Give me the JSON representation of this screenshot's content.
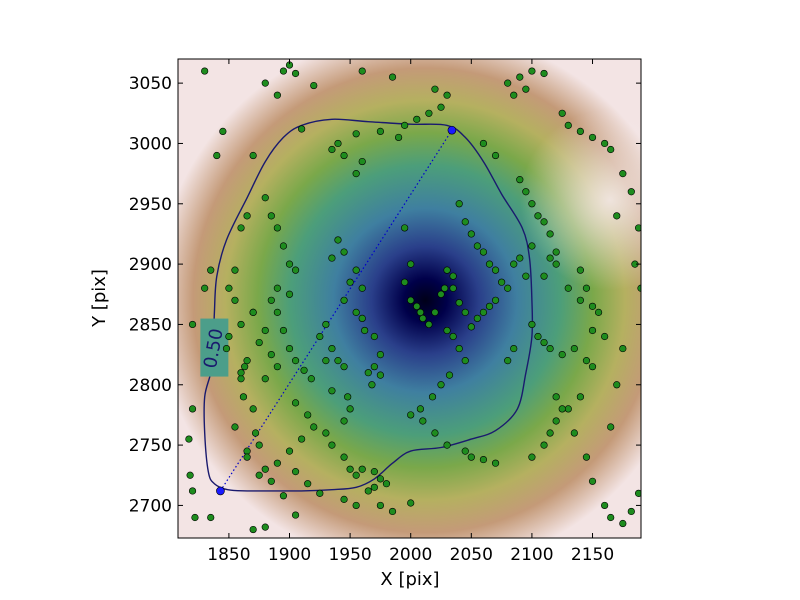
{
  "chart_data": {
    "type": "scatter",
    "title": "",
    "xlabel": "X [pix]",
    "ylabel": "Y [pix]",
    "xlim": [
      1808,
      2190
    ],
    "ylim": [
      2673,
      3070
    ],
    "x_ticks": [
      1850,
      1900,
      1950,
      2000,
      2050,
      2100,
      2150
    ],
    "y_ticks": [
      2700,
      2750,
      2800,
      2850,
      2900,
      2950,
      3000,
      3050
    ],
    "grid": false,
    "legend": "none",
    "density_peak": {
      "x": 2012,
      "y": 2870
    },
    "contour": {
      "label": "0.50",
      "color": "#1a1a6e",
      "path": [
        [
          1849,
          2713
        ],
        [
          1838,
          2718
        ],
        [
          1833,
          2728
        ],
        [
          1830,
          2760
        ],
        [
          1830,
          2790
        ],
        [
          1835,
          2810
        ],
        [
          1837,
          2830
        ],
        [
          1838,
          2860
        ],
        [
          1840,
          2890
        ],
        [
          1848,
          2920
        ],
        [
          1865,
          2955
        ],
        [
          1880,
          2985
        ],
        [
          1895,
          3005
        ],
        [
          1910,
          3015
        ],
        [
          1935,
          3020
        ],
        [
          1965,
          3018
        ],
        [
          2000,
          3016
        ],
        [
          2030,
          3015
        ],
        [
          2045,
          3005
        ],
        [
          2060,
          2985
        ],
        [
          2075,
          2958
        ],
        [
          2092,
          2930
        ],
        [
          2098,
          2905
        ],
        [
          2100,
          2870
        ],
        [
          2100,
          2840
        ],
        [
          2095,
          2810
        ],
        [
          2088,
          2780
        ],
        [
          2070,
          2762
        ],
        [
          2050,
          2755
        ],
        [
          2025,
          2748
        ],
        [
          2000,
          2745
        ],
        [
          1985,
          2735
        ],
        [
          1970,
          2722
        ],
        [
          1955,
          2715
        ],
        [
          1935,
          2713
        ],
        [
          1910,
          2712
        ],
        [
          1885,
          2712
        ],
        [
          1865,
          2712
        ]
      ]
    },
    "major_axis": {
      "color": "#0000cc",
      "endpoints": [
        [
          1843,
          2712
        ],
        [
          2034,
          3011
        ]
      ]
    },
    "points_color": "#1e8c1e",
    "points": [
      [
        1830,
        3060
      ],
      [
        1845,
        3010
      ],
      [
        1840,
        2990
      ],
      [
        1865,
        2940
      ],
      [
        1860,
        2930
      ],
      [
        1855,
        2870
      ],
      [
        1850,
        2840
      ],
      [
        1848,
        2830
      ],
      [
        1835,
        2895
      ],
      [
        1830,
        2880
      ],
      [
        1820,
        2850
      ],
      [
        1820,
        2780
      ],
      [
        1817,
        2755
      ],
      [
        1818,
        2725
      ],
      [
        1820,
        2712
      ],
      [
        1822,
        2690
      ],
      [
        1835,
        2690
      ],
      [
        1850,
        2880
      ],
      [
        1855,
        2895
      ],
      [
        1860,
        2850
      ],
      [
        1863,
        2815
      ],
      [
        1860,
        2805
      ],
      [
        1862,
        2790
      ],
      [
        1870,
        2780
      ],
      [
        1872,
        2760
      ],
      [
        1875,
        2750
      ],
      [
        1865,
        2745
      ],
      [
        1880,
        2730
      ],
      [
        1885,
        2720
      ],
      [
        1895,
        2708
      ],
      [
        1870,
        2680
      ],
      [
        1880,
        2682
      ],
      [
        1905,
        2692
      ],
      [
        1880,
        3050
      ],
      [
        1890,
        3040
      ],
      [
        1895,
        3060
      ],
      [
        1900,
        3065
      ],
      [
        1905,
        3058
      ],
      [
        1920,
        3048
      ],
      [
        1910,
        3012
      ],
      [
        1870,
        2990
      ],
      [
        1880,
        2955
      ],
      [
        1885,
        2940
      ],
      [
        1890,
        2930
      ],
      [
        1895,
        2915
      ],
      [
        1900,
        2900
      ],
      [
        1905,
        2895
      ],
      [
        1900,
        2875
      ],
      [
        1890,
        2860
      ],
      [
        1895,
        2845
      ],
      [
        1900,
        2830
      ],
      [
        1905,
        2820
      ],
      [
        1912,
        2812
      ],
      [
        1918,
        2805
      ],
      [
        1930,
        2850
      ],
      [
        1925,
        2840
      ],
      [
        1935,
        2830
      ],
      [
        1930,
        2820
      ],
      [
        1940,
        2820
      ],
      [
        1945,
        2815
      ],
      [
        1935,
        2795
      ],
      [
        1948,
        2790
      ],
      [
        1950,
        2780
      ],
      [
        1945,
        2770
      ],
      [
        1930,
        2760
      ],
      [
        1935,
        2750
      ],
      [
        1945,
        2740
      ],
      [
        1950,
        2730
      ],
      [
        1955,
        2725
      ],
      [
        1960,
        2730
      ],
      [
        1970,
        2728
      ],
      [
        1975,
        2722
      ],
      [
        1980,
        2718
      ],
      [
        1965,
        2712
      ],
      [
        1970,
        2715
      ],
      [
        1945,
        2705
      ],
      [
        1955,
        2700
      ],
      [
        1975,
        2700
      ],
      [
        1985,
        2695
      ],
      [
        2000,
        2702
      ],
      [
        1940,
        2920
      ],
      [
        1945,
        2910
      ],
      [
        1935,
        2905
      ],
      [
        1955,
        2895
      ],
      [
        1950,
        2885
      ],
      [
        1960,
        2880
      ],
      [
        1945,
        2870
      ],
      [
        1955,
        2860
      ],
      [
        1960,
        2855
      ],
      [
        1962,
        2845
      ],
      [
        1970,
        2840
      ],
      [
        1975,
        2825
      ],
      [
        1970,
        2815
      ],
      [
        1965,
        2810
      ],
      [
        1975,
        2808
      ],
      [
        1968,
        2800
      ],
      [
        1955,
        2975
      ],
      [
        1960,
        2985
      ],
      [
        1945,
        2990
      ],
      [
        1935,
        2995
      ],
      [
        1940,
        3000
      ],
      [
        1955,
        3008
      ],
      [
        1975,
        3010
      ],
      [
        1990,
        3005
      ],
      [
        1995,
        3015
      ],
      [
        2005,
        3020
      ],
      [
        2015,
        3025
      ],
      [
        2025,
        3030
      ],
      [
        2030,
        3040
      ],
      [
        2020,
        3045
      ],
      [
        1985,
        3055
      ],
      [
        1960,
        3060
      ],
      [
        1995,
        2930
      ],
      [
        2000,
        2900
      ],
      [
        1995,
        2885
      ],
      [
        2000,
        2870
      ],
      [
        2005,
        2865
      ],
      [
        2008,
        2860
      ],
      [
        2010,
        2855
      ],
      [
        2015,
        2850
      ],
      [
        2020,
        2860
      ],
      [
        2025,
        2875
      ],
      [
        2028,
        2880
      ],
      [
        2030,
        2895
      ],
      [
        2035,
        2890
      ],
      [
        2035,
        2880
      ],
      [
        2040,
        2868
      ],
      [
        2045,
        2860
      ],
      [
        2030,
        2845
      ],
      [
        2035,
        2840
      ],
      [
        2040,
        2830
      ],
      [
        2045,
        2820
      ],
      [
        2032,
        2808
      ],
      [
        2025,
        2800
      ],
      [
        2018,
        2790
      ],
      [
        2008,
        2780
      ],
      [
        2000,
        2775
      ],
      [
        2010,
        2770
      ],
      [
        2020,
        2760
      ],
      [
        2030,
        2750
      ],
      [
        2045,
        2745
      ],
      [
        2050,
        2740
      ],
      [
        2060,
        2738
      ],
      [
        2070,
        2735
      ],
      [
        2040,
        2950
      ],
      [
        2045,
        2935
      ],
      [
        2050,
        2925
      ],
      [
        2055,
        2915
      ],
      [
        2060,
        2910
      ],
      [
        2065,
        2900
      ],
      [
        2070,
        2895
      ],
      [
        2075,
        2885
      ],
      [
        2080,
        2880
      ],
      [
        2070,
        2870
      ],
      [
        2065,
        2865
      ],
      [
        2060,
        2860
      ],
      [
        2055,
        2855
      ],
      [
        2050,
        2848
      ],
      [
        2090,
        2970
      ],
      [
        2095,
        2960
      ],
      [
        2100,
        2950
      ],
      [
        2105,
        2940
      ],
      [
        2110,
        2935
      ],
      [
        2115,
        2925
      ],
      [
        2100,
        2915
      ],
      [
        2090,
        2905
      ],
      [
        2085,
        2900
      ],
      [
        2095,
        2890
      ],
      [
        2110,
        2890
      ],
      [
        2120,
        2900
      ],
      [
        2130,
        2880
      ],
      [
        2140,
        2870
      ],
      [
        2150,
        2865
      ],
      [
        2155,
        2860
      ],
      [
        2100,
        2850
      ],
      [
        2105,
        2840
      ],
      [
        2110,
        2835
      ],
      [
        2115,
        2830
      ],
      [
        2125,
        2825
      ],
      [
        2135,
        2830
      ],
      [
        2145,
        2820
      ],
      [
        2150,
        2815
      ],
      [
        2140,
        2790
      ],
      [
        2130,
        2780
      ],
      [
        2120,
        2770
      ],
      [
        2115,
        2760
      ],
      [
        2110,
        2750
      ],
      [
        2100,
        2740
      ],
      [
        2125,
        3025
      ],
      [
        2130,
        3015
      ],
      [
        2140,
        3010
      ],
      [
        2150,
        3005
      ],
      [
        2160,
        3000
      ],
      [
        2165,
        2995
      ],
      [
        2175,
        2975
      ],
      [
        2182,
        2960
      ],
      [
        2170,
        2940
      ],
      [
        2060,
        3000
      ],
      [
        2070,
        2990
      ],
      [
        2080,
        3050
      ],
      [
        2090,
        3055
      ],
      [
        2100,
        3060
      ],
      [
        2110,
        3058
      ],
      [
        2095,
        3045
      ],
      [
        2085,
        3040
      ],
      [
        2120,
        2790
      ],
      [
        2125,
        2780
      ],
      [
        2135,
        2760
      ],
      [
        2145,
        2740
      ],
      [
        2150,
        2720
      ],
      [
        2160,
        2700
      ],
      [
        2165,
        2690
      ],
      [
        2175,
        2685
      ],
      [
        2185,
        2900
      ],
      [
        2188,
        2930
      ],
      [
        2190,
        2880
      ],
      [
        2175,
        2830
      ],
      [
        2170,
        2800
      ],
      [
        2165,
        2765
      ],
      [
        2188,
        2710
      ],
      [
        2182,
        2695
      ],
      [
        2160,
        2840
      ],
      [
        2150,
        2845
      ],
      [
        2145,
        2880
      ],
      [
        2140,
        2895
      ],
      [
        2115,
        2905
      ],
      [
        2120,
        2910
      ],
      [
        2085,
        2830
      ],
      [
        2080,
        2820
      ],
      [
        1880,
        2845
      ],
      [
        1875,
        2835
      ],
      [
        1885,
        2825
      ],
      [
        1890,
        2815
      ],
      [
        1880,
        2805
      ],
      [
        1905,
        2785
      ],
      [
        1915,
        2775
      ],
      [
        1920,
        2765
      ],
      [
        1910,
        2755
      ],
      [
        1900,
        2745
      ],
      [
        1890,
        2735
      ],
      [
        1905,
        2728
      ],
      [
        1915,
        2718
      ],
      [
        1925,
        2710
      ],
      [
        1890,
        2880
      ],
      [
        1885,
        2870
      ],
      [
        1870,
        2860
      ],
      [
        1865,
        2820
      ],
      [
        1870,
        2860
      ],
      [
        1860,
        2810
      ],
      [
        1855,
        2765
      ],
      [
        1865,
        2740
      ],
      [
        1875,
        2725
      ]
    ]
  }
}
